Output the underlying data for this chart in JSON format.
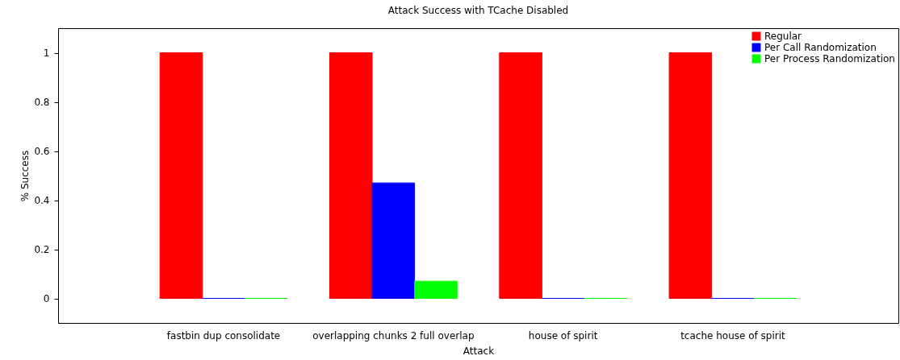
{
  "chart_data": {
    "type": "bar",
    "title": "Attack Success with TCache Disabled",
    "xlabel": "Attack",
    "ylabel": "% Success",
    "categories": [
      "fastbin dup consolidate",
      "overlapping chunks 2 full overlap",
      "house of spirit",
      "tcache house of spirit"
    ],
    "series": [
      {
        "name": "Regular",
        "color": "#ff0000",
        "values": [
          1,
          1,
          1,
          1
        ]
      },
      {
        "name": "Per Call Randomization",
        "color": "#0000ff",
        "values": [
          0,
          0.47,
          0,
          0
        ]
      },
      {
        "name": "Per Process Randomization",
        "color": "#00ff00",
        "values": [
          0,
          0.07,
          0,
          0
        ]
      }
    ],
    "ylim": [
      -0.1,
      1.1
    ],
    "yticks": [
      0,
      0.2,
      0.4,
      0.6,
      0.8,
      1
    ],
    "grid": false,
    "legend": "top right"
  }
}
